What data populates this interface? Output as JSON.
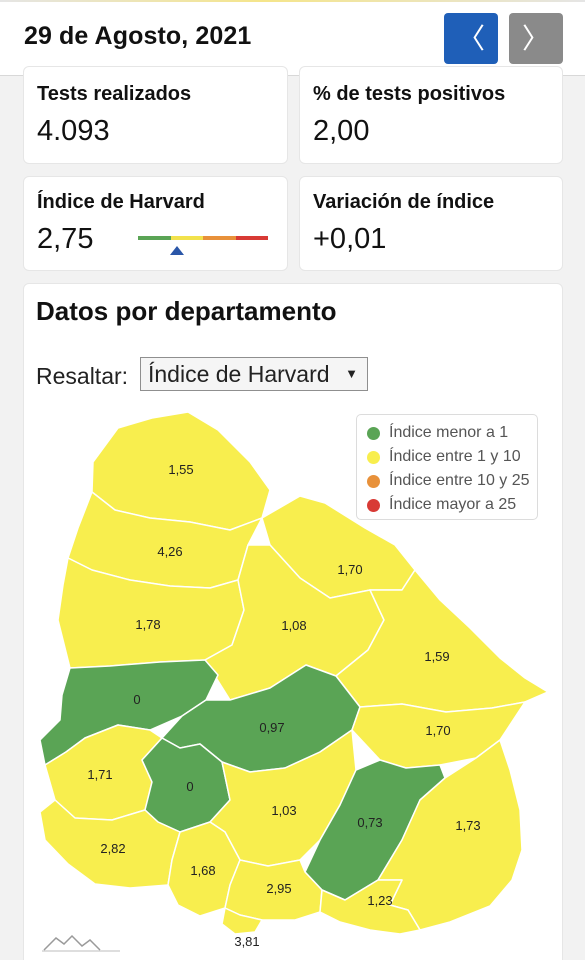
{
  "header": {
    "date": "29 de Agosto, 2021",
    "prev_glyph": "〈",
    "next_glyph": "〉"
  },
  "stats": {
    "tests": {
      "label": "Tests realizados",
      "value": "4.093"
    },
    "positives": {
      "label": "% de tests positivos",
      "value": "2,00"
    },
    "harvard": {
      "label": "Índice de Harvard",
      "value": "2,75"
    },
    "variation": {
      "label": "Variación de índice",
      "value": "+0,01"
    }
  },
  "index_scale": {
    "colors": [
      "#5aa455",
      "#f2e24c",
      "#e8913a",
      "#d83a35"
    ],
    "marker_segment": 1
  },
  "section": {
    "title": "Datos por departamento",
    "highlight_label": "Resaltar:",
    "select_value": "Índice de Harvard",
    "select_caret": "▼"
  },
  "legend": [
    {
      "label": "Índice menor a 1",
      "color": "#5aa455"
    },
    {
      "label": "Índice entre 1 y 10",
      "color": "#f8ee4e"
    },
    {
      "label": "Índice entre 10 y 25",
      "color": "#e8913a"
    },
    {
      "label": "Índice mayor a 25",
      "color": "#d83a35"
    }
  ],
  "colors": {
    "green": "#5aa455",
    "yellow": "#f8ee4e",
    "border": "#ffffff",
    "nav_prev": "#1f5fb8",
    "nav_next": "#8a8a8a"
  },
  "departments": [
    {
      "value": "1,55",
      "level": "yellow"
    },
    {
      "value": "4,26",
      "level": "yellow"
    },
    {
      "value": "1,70",
      "level": "yellow"
    },
    {
      "value": "1,78",
      "level": "yellow"
    },
    {
      "value": "1,08",
      "level": "yellow"
    },
    {
      "value": "1,59",
      "level": "yellow"
    },
    {
      "value": "0",
      "level": "green"
    },
    {
      "value": "0,97",
      "level": "green"
    },
    {
      "value": "1,70",
      "level": "yellow"
    },
    {
      "value": "1,71",
      "level": "yellow"
    },
    {
      "value": "0",
      "level": "green"
    },
    {
      "value": "1,03",
      "level": "yellow"
    },
    {
      "value": "0,73",
      "level": "green"
    },
    {
      "value": "1,73",
      "level": "yellow"
    },
    {
      "value": "2,82",
      "level": "yellow"
    },
    {
      "value": "1,68",
      "level": "yellow"
    },
    {
      "value": "2,95",
      "level": "yellow"
    },
    {
      "value": "1,23",
      "level": "yellow"
    },
    {
      "value": "3,81",
      "level": "yellow"
    }
  ]
}
